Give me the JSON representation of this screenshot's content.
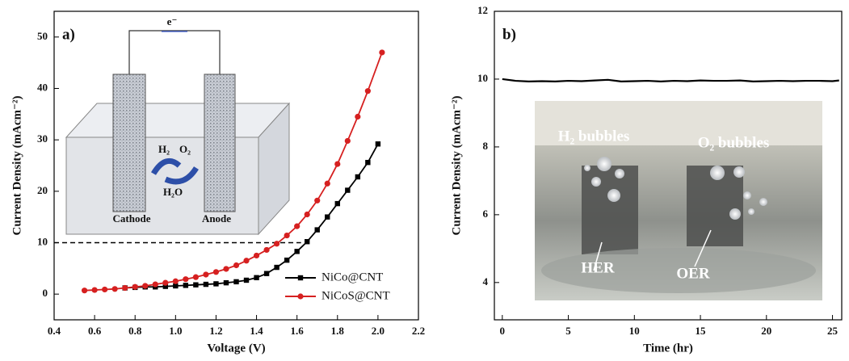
{
  "chart_data": [
    {
      "type": "line",
      "panel_label": "a)",
      "x_label": "Voltage (V)",
      "y_label": "Current Density (mAcm⁻²)",
      "xlim": [
        0.4,
        2.2
      ],
      "ylim": [
        -5,
        55
      ],
      "xticks": [
        0.4,
        0.6,
        0.8,
        {
          "value": 1,
          "label": "1.0"
        },
        1.2,
        1.4,
        1.6,
        1.8,
        {
          "value": 2,
          "label": "2.0"
        },
        2.2
      ],
      "yticks": [
        0,
        10,
        20,
        30,
        40,
        50
      ],
      "legend": "lower right",
      "reference_line": {
        "y": 10,
        "x_end": 1.62
      },
      "series": [
        {
          "name": "NiCo@CNT",
          "color": "#000000",
          "marker": "square",
          "x": [
            0.75,
            0.8,
            0.85,
            0.9,
            0.95,
            1.0,
            1.05,
            1.1,
            1.15,
            1.2,
            1.25,
            1.3,
            1.35,
            1.4,
            1.45,
            1.5,
            1.55,
            1.6,
            1.65,
            1.7,
            1.75,
            1.8,
            1.85,
            1.9,
            1.95,
            2.0
          ],
          "values": [
            1.2,
            1.3,
            1.4,
            1.4,
            1.5,
            1.6,
            1.7,
            1.8,
            1.9,
            2.0,
            2.2,
            2.4,
            2.7,
            3.2,
            4.0,
            5.2,
            6.6,
            8.3,
            10.2,
            12.5,
            15.0,
            17.6,
            20.2,
            22.8,
            25.6,
            29.2
          ]
        },
        {
          "name": "NiCoS@CNT",
          "color": "#d62020",
          "marker": "circle",
          "x": [
            0.55,
            0.6,
            0.65,
            0.7,
            0.75,
            0.8,
            0.85,
            0.9,
            0.95,
            1.0,
            1.05,
            1.1,
            1.15,
            1.2,
            1.25,
            1.3,
            1.35,
            1.4,
            1.45,
            1.5,
            1.55,
            1.6,
            1.65,
            1.7,
            1.75,
            1.8,
            1.85,
            1.9,
            1.95,
            2.02
          ],
          "values": [
            0.7,
            0.8,
            0.9,
            1.0,
            1.2,
            1.4,
            1.6,
            1.9,
            2.2,
            2.5,
            2.9,
            3.3,
            3.8,
            4.3,
            4.9,
            5.6,
            6.5,
            7.5,
            8.6,
            9.8,
            11.4,
            13.2,
            15.5,
            18.2,
            21.5,
            25.3,
            29.8,
            34.5,
            39.5,
            47.0
          ]
        }
      ],
      "inset": {
        "electron": "e⁻",
        "h2": "H₂",
        "o2": "O₂",
        "h2o": "H₂O",
        "cathode": "Cathode",
        "anode": "Anode"
      }
    },
    {
      "type": "line",
      "panel_label": "b)",
      "x_label": "Time (hr)",
      "y_label": "Current Density (mAcm⁻²)",
      "xlim": [
        -0.6,
        25.7
      ],
      "ylim": [
        2.9,
        12
      ],
      "xticks": [
        0,
        5,
        10,
        15,
        20,
        25
      ],
      "yticks": [
        4,
        6,
        8,
        10,
        12
      ],
      "series": [
        {
          "name": null,
          "color": "#000000",
          "marker": "none",
          "x": [
            0,
            1,
            2,
            3,
            4,
            5,
            6,
            7,
            8,
            9,
            10,
            11,
            12,
            13,
            14,
            15,
            16,
            17,
            18,
            19,
            20,
            21,
            22,
            23,
            24,
            25,
            25.5
          ],
          "values": [
            10.0,
            9.95,
            9.93,
            9.94,
            9.93,
            9.95,
            9.94,
            9.96,
            9.98,
            9.93,
            9.94,
            9.95,
            9.93,
            9.95,
            9.94,
            9.96,
            9.95,
            9.95,
            9.96,
            9.93,
            9.94,
            9.95,
            9.94,
            9.95,
            9.95,
            9.94,
            9.96
          ]
        }
      ],
      "inset": {
        "h2_bubbles": "H₂ bubbles",
        "o2_bubbles": "O₂ bubbles",
        "her": "HER",
        "oer": "OER"
      }
    }
  ]
}
